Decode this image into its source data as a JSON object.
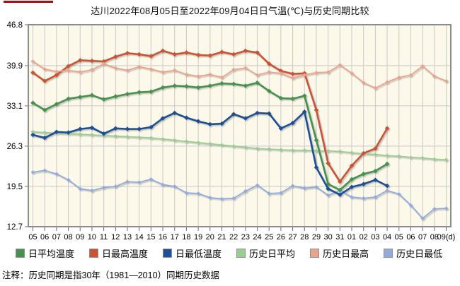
{
  "accent_color": "#a01313",
  "title": "达川2022年08月05日至2022年09月04日日气温(℃)与历史同期比较",
  "footnote": "注释：历史同期是指30年（1981—2010）同期历史数据",
  "chart_data": {
    "type": "line",
    "title": "达川2022年08月05日至2022年09月04日日气温(℃)与历史同期比较",
    "xlabel": "",
    "ylabel": "",
    "x_unit_suffix": "(d)",
    "grid": true,
    "legend_position": "bottom",
    "plot_bg": "#fcf9ea",
    "grid_color": "#c9c9c9",
    "frame_color": "#8d8d8d",
    "ylim": [
      12.7,
      46.8
    ],
    "y_ticks": [
      46.8,
      39.9,
      33.1,
      26.3,
      19.5,
      12.7
    ],
    "x_labels": [
      "05",
      "06",
      "07",
      "08",
      "09",
      "10",
      "11",
      "12",
      "13",
      "14",
      "15",
      "16",
      "17",
      "18",
      "19",
      "20",
      "21",
      "22",
      "23",
      "24",
      "25",
      "26",
      "27",
      "28",
      "29",
      "30",
      "31",
      "01",
      "02",
      "03",
      "04",
      "05",
      "06",
      "07",
      "08",
      "09(d)"
    ],
    "series": [
      {
        "name": "日平均温度",
        "color": "#44914e",
        "width": 2.6,
        "values": [
          33.6,
          32.4,
          33.4,
          34.3,
          34.6,
          34.9,
          34.2,
          34.7,
          35.1,
          35.4,
          35.5,
          36.2,
          36.5,
          36.4,
          36.2,
          36.5,
          36.9,
          36.8,
          36.5,
          37.0,
          35.6,
          34.4,
          34.3,
          34.8,
          27.3,
          19.9,
          18.9,
          20.7,
          21.6,
          22.1,
          23.3
        ]
      },
      {
        "name": "日最高温度",
        "color": "#cb5334",
        "width": 2.6,
        "values": [
          38.7,
          37.3,
          38.3,
          39.8,
          40.8,
          40.7,
          40.6,
          41.4,
          42.0,
          41.8,
          41.5,
          42.4,
          41.8,
          42.1,
          41.7,
          41.6,
          42.2,
          41.8,
          42.4,
          42.1,
          40.2,
          39.0,
          38.5,
          38.6,
          32.4,
          23.4,
          20.3,
          23.0,
          25.1,
          25.9,
          29.3
        ]
      },
      {
        "name": "日最低温度",
        "color": "#1e4f96",
        "width": 2.6,
        "values": [
          28.2,
          27.7,
          28.7,
          28.6,
          29.2,
          29.4,
          28.4,
          29.3,
          29.2,
          29.2,
          29.5,
          31.0,
          31.9,
          31.1,
          30.5,
          30.0,
          30.1,
          31.7,
          31.0,
          31.9,
          31.8,
          29.3,
          30.2,
          32.1,
          22.7,
          19.1,
          18.1,
          19.4,
          19.9,
          20.6,
          19.6
        ]
      },
      {
        "name": "历史日平均",
        "color": "#9bcd92",
        "width": 1.8,
        "values": [
          28.7,
          28.6,
          28.5,
          28.4,
          28.3,
          28.2,
          28.1,
          28.0,
          27.9,
          27.8,
          27.7,
          27.5,
          27.3,
          27.1,
          26.9,
          26.7,
          26.5,
          26.3,
          26.1,
          25.9,
          25.8,
          25.7,
          25.6,
          25.6,
          25.5,
          25.5,
          25.4,
          25.2,
          25.0,
          24.9,
          24.7,
          24.6,
          24.4,
          24.3,
          24.1,
          24.0
        ]
      },
      {
        "name": "历史日最高",
        "color": "#e9a38e",
        "width": 1.8,
        "values": [
          40.6,
          39.3,
          38.9,
          39.1,
          38.8,
          39.2,
          40.2,
          39.5,
          39.1,
          39.7,
          39.3,
          38.8,
          39.1,
          38.4,
          38.1,
          38.4,
          37.9,
          39.2,
          39.5,
          38.3,
          38.8,
          38.6,
          37.8,
          38.3,
          38.7,
          38.8,
          40.0,
          38.6,
          37.0,
          36.1,
          37.1,
          37.9,
          38.3,
          39.8,
          38.1,
          37.3
        ]
      },
      {
        "name": "历史日最低",
        "color": "#93aadd",
        "width": 1.8,
        "values": [
          21.9,
          22.2,
          21.6,
          20.6,
          19.1,
          18.8,
          19.3,
          19.5,
          20.3,
          20.2,
          20.7,
          19.8,
          19.5,
          18.4,
          18.3,
          17.6,
          17.4,
          17.5,
          18.7,
          19.7,
          18.3,
          18.4,
          19.6,
          19.2,
          19.4,
          18.0,
          18.8,
          17.7,
          17.5,
          17.7,
          18.8,
          18.2,
          16.3,
          14.1,
          15.7,
          15.8
        ]
      }
    ]
  }
}
